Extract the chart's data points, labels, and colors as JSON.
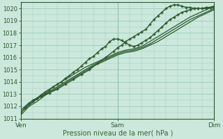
{
  "title": "",
  "xlabel": "Pression niveau de la mer( hPa )",
  "ylabel": "",
  "background_color": "#cce8dc",
  "grid_color": "#99ccbb",
  "line_color": "#2d5a2d",
  "tick_label_color": "#2d5a2d",
  "xlabel_color": "#336633",
  "ylim": [
    1011.0,
    1020.5
  ],
  "yticks": [
    1011,
    1012,
    1013,
    1014,
    1015,
    1016,
    1017,
    1018,
    1019,
    1020
  ],
  "xtick_positions": [
    0,
    48,
    96
  ],
  "xtick_labels": [
    "Ven",
    "Sam",
    "Dim"
  ],
  "total_hours": 96,
  "lines": [
    {
      "x": [
        0,
        2,
        4,
        6,
        8,
        10,
        12,
        14,
        16,
        18,
        20,
        22,
        24,
        26,
        28,
        30,
        32,
        34,
        36,
        38,
        40,
        42,
        44,
        46,
        48,
        50,
        52,
        54,
        56,
        58,
        60,
        62,
        64,
        66,
        68,
        70,
        72,
        74,
        76,
        78,
        80,
        82,
        84,
        86,
        88,
        90,
        92,
        94,
        96
      ],
      "y": [
        1011.5,
        1011.9,
        1012.2,
        1012.4,
        1012.6,
        1012.9,
        1013.1,
        1013.3,
        1013.6,
        1013.8,
        1014.0,
        1014.3,
        1014.5,
        1014.8,
        1015.0,
        1015.3,
        1015.6,
        1015.9,
        1016.1,
        1016.4,
        1016.7,
        1016.9,
        1017.3,
        1017.5,
        1017.5,
        1017.4,
        1017.2,
        1017.0,
        1016.9,
        1017.0,
        1017.2,
        1017.4,
        1017.6,
        1017.9,
        1018.2,
        1018.5,
        1018.8,
        1019.1,
        1019.3,
        1019.5,
        1019.7,
        1019.8,
        1019.9,
        1020.0,
        1020.0,
        1020.0,
        1020.1,
        1020.1,
        1020.2
      ],
      "marker": true,
      "lw": 1.0
    },
    {
      "x": [
        0,
        4,
        8,
        12,
        16,
        20,
        24,
        28,
        32,
        36,
        40,
        44,
        48,
        52,
        56,
        60,
        64,
        68,
        72,
        76,
        80,
        84,
        88,
        92,
        96
      ],
      "y": [
        1011.3,
        1012.0,
        1012.4,
        1012.9,
        1013.3,
        1013.7,
        1014.1,
        1014.5,
        1014.9,
        1015.3,
        1015.6,
        1015.9,
        1016.2,
        1016.4,
        1016.5,
        1016.7,
        1017.0,
        1017.3,
        1017.7,
        1018.1,
        1018.5,
        1018.9,
        1019.3,
        1019.6,
        1019.9
      ],
      "marker": false,
      "lw": 0.9
    },
    {
      "x": [
        0,
        4,
        8,
        12,
        16,
        20,
        24,
        28,
        32,
        36,
        40,
        44,
        48,
        52,
        56,
        60,
        64,
        68,
        72,
        76,
        80,
        84,
        88,
        92,
        96
      ],
      "y": [
        1011.5,
        1012.1,
        1012.6,
        1013.0,
        1013.4,
        1013.8,
        1014.2,
        1014.6,
        1015.0,
        1015.4,
        1015.7,
        1016.0,
        1016.3,
        1016.5,
        1016.6,
        1016.8,
        1017.1,
        1017.5,
        1017.9,
        1018.3,
        1018.7,
        1019.1,
        1019.4,
        1019.7,
        1020.0
      ],
      "marker": false,
      "lw": 0.9
    },
    {
      "x": [
        0,
        4,
        8,
        12,
        16,
        20,
        24,
        28,
        32,
        36,
        40,
        44,
        48,
        52,
        56,
        60,
        64,
        68,
        72,
        76,
        80,
        84,
        88,
        92,
        96
      ],
      "y": [
        1011.7,
        1012.3,
        1012.7,
        1013.2,
        1013.6,
        1014.0,
        1014.4,
        1014.8,
        1015.2,
        1015.5,
        1015.8,
        1016.1,
        1016.4,
        1016.6,
        1016.7,
        1016.9,
        1017.3,
        1017.7,
        1018.1,
        1018.5,
        1018.9,
        1019.3,
        1019.6,
        1019.9,
        1020.2
      ],
      "marker": false,
      "lw": 0.9
    },
    {
      "x": [
        6,
        10,
        14,
        18,
        22,
        26,
        30,
        34,
        38,
        42,
        46,
        48,
        50,
        52,
        54,
        56,
        58,
        60,
        62,
        64,
        66,
        68,
        70,
        72,
        74,
        76,
        78,
        80,
        82,
        84,
        86,
        88,
        90,
        92,
        94,
        96
      ],
      "y": [
        1012.5,
        1012.8,
        1013.1,
        1013.4,
        1013.8,
        1014.2,
        1014.6,
        1015.0,
        1015.5,
        1016.0,
        1016.5,
        1016.8,
        1017.0,
        1017.3,
        1017.5,
        1017.7,
        1017.9,
        1018.1,
        1018.3,
        1018.7,
        1019.1,
        1019.4,
        1019.7,
        1020.0,
        1020.2,
        1020.3,
        1020.3,
        1020.2,
        1020.1,
        1020.1,
        1020.0,
        1020.0,
        1020.0,
        1020.0,
        1020.1,
        1020.1
      ],
      "marker": true,
      "lw": 1.0
    }
  ]
}
